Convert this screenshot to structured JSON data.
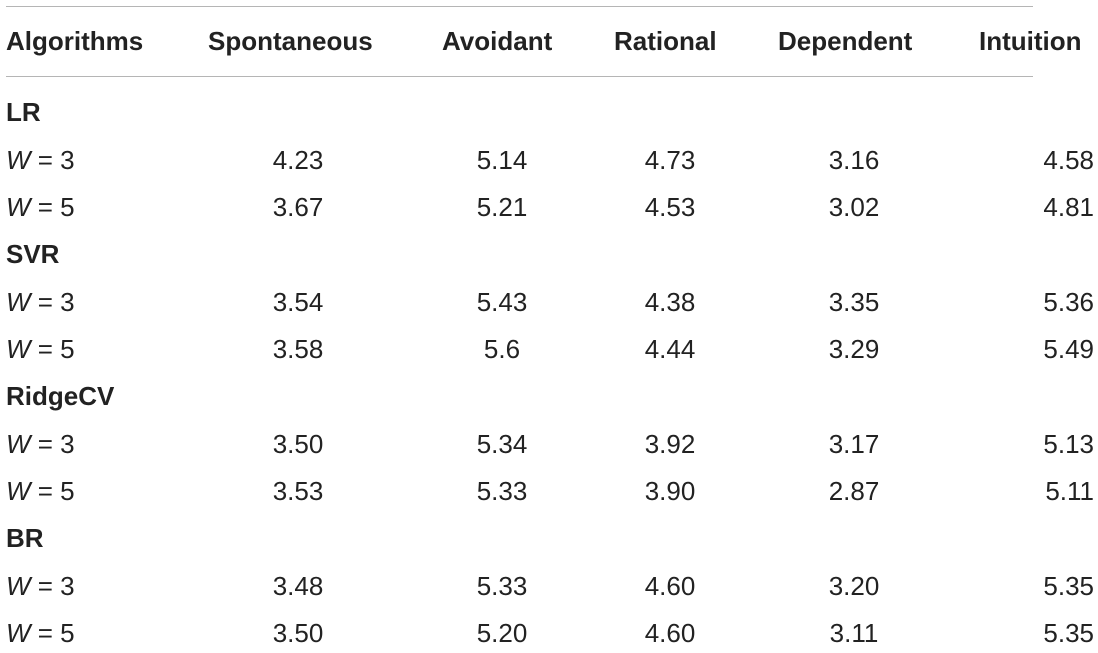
{
  "table": {
    "headers": [
      "Algorithms",
      "Spontaneous",
      "Avoidant",
      "Rational",
      "Dependent",
      "Intuition"
    ],
    "groups": [
      {
        "name": "LR",
        "rows": [
          {
            "w_var": "W",
            "w_eq": " = 3",
            "values": [
              "4.23",
              "5.14",
              "4.73",
              "3.16",
              "4.58"
            ]
          },
          {
            "w_var": "W",
            "w_eq": " = 5",
            "values": [
              "3.67",
              "5.21",
              "4.53",
              "3.02",
              "4.81"
            ]
          }
        ]
      },
      {
        "name": "SVR",
        "rows": [
          {
            "w_var": "W",
            "w_eq": " = 3",
            "values": [
              "3.54",
              "5.43",
              "4.38",
              "3.35",
              "5.36"
            ]
          },
          {
            "w_var": "W",
            "w_eq": " = 5",
            "values": [
              "3.58",
              "5.6",
              "4.44",
              "3.29",
              "5.49"
            ]
          }
        ]
      },
      {
        "name": "RidgeCV",
        "rows": [
          {
            "w_var": "W",
            "w_eq": " = 3",
            "values": [
              "3.50",
              "5.34",
              "3.92",
              "3.17",
              "5.13"
            ]
          },
          {
            "w_var": "W",
            "w_eq": " = 5",
            "values": [
              "3.53",
              "5.33",
              "3.90",
              "2.87",
              "5.11"
            ]
          }
        ]
      },
      {
        "name": "BR",
        "rows": [
          {
            "w_var": "W",
            "w_eq": " = 3",
            "values": [
              "3.48",
              "5.33",
              "4.60",
              "3.20",
              "5.35"
            ]
          },
          {
            "w_var": "W",
            "w_eq": " = 5",
            "values": [
              "3.50",
              "5.20",
              "4.60",
              "3.11",
              "5.35"
            ]
          }
        ]
      }
    ]
  }
}
